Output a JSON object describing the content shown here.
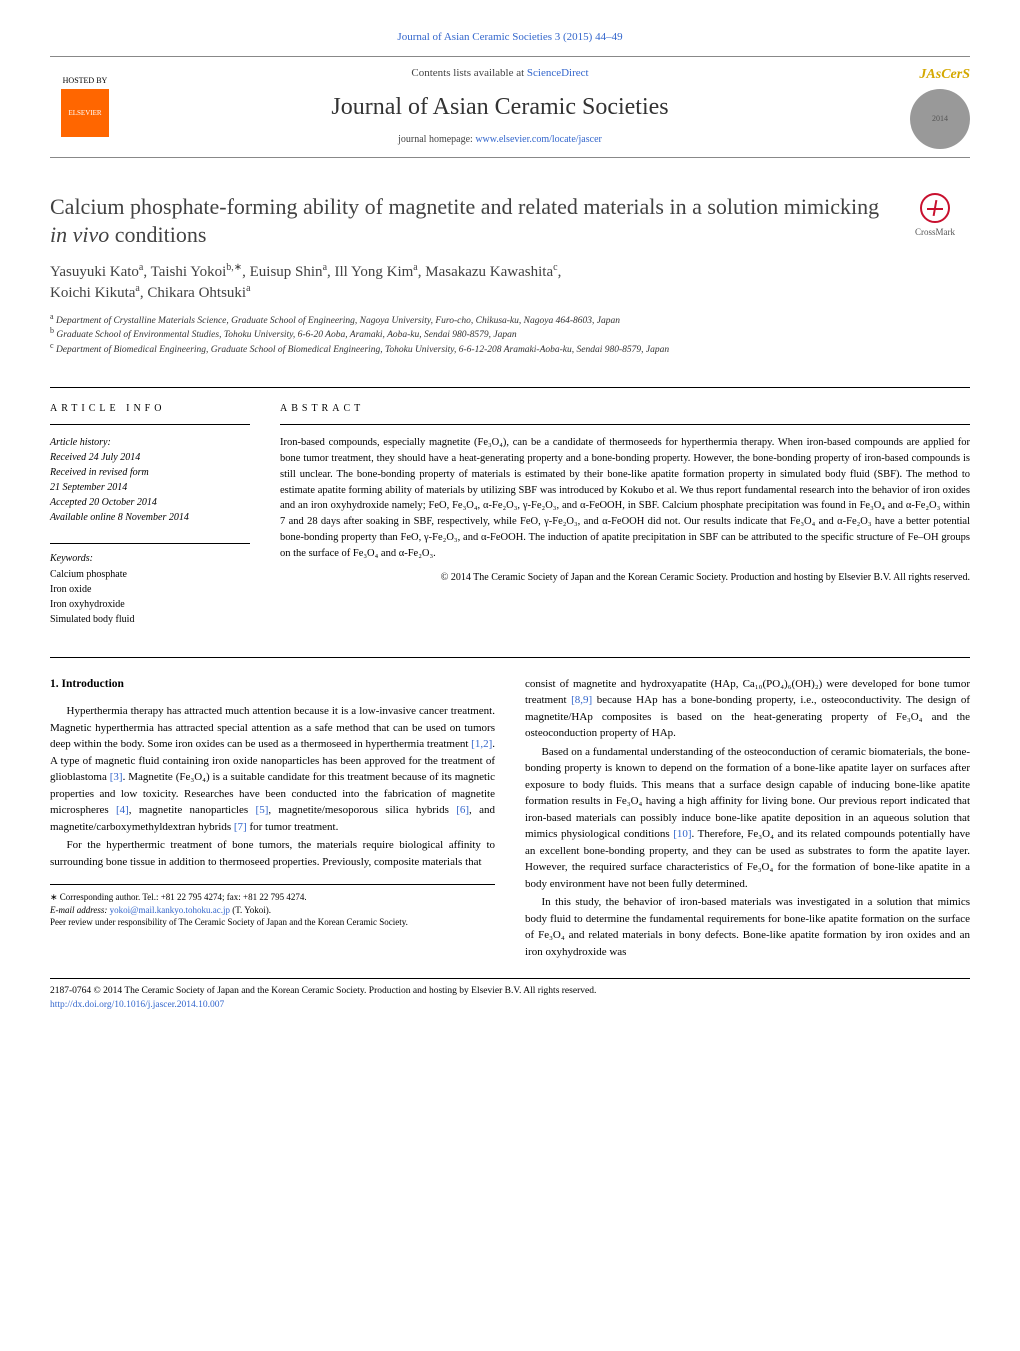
{
  "header": {
    "journal_ref": "Journal of Asian Ceramic Societies 3 (2015) 44–49",
    "hosted_by": "HOSTED BY",
    "publisher_name": "ELSEVIER",
    "contents_prefix": "Contents lists available at ",
    "contents_link": "ScienceDirect",
    "journal_name": "Journal of Asian Ceramic Societies",
    "homepage_prefix": "journal homepage: ",
    "homepage_link": "www.elsevier.com/locate/jascer",
    "journal_logo_text": "JAsCerS",
    "journal_logo_year": "2014"
  },
  "crossmark": {
    "label": "CrossMark"
  },
  "title": {
    "pre": "Calcium phosphate-forming ability of magnetite and related materials in a solution mimicking ",
    "ital": "in vivo",
    "post": " conditions"
  },
  "authors": {
    "a1": "Yasuyuki Kato",
    "a1_sup": "a",
    "a2": "Taishi Yokoi",
    "a2_sup": "b,∗",
    "a3": "Euisup Shin",
    "a3_sup": "a",
    "a4": "Ill Yong Kim",
    "a4_sup": "a",
    "a5": "Masakazu Kawashita",
    "a5_sup": "c",
    "a6": "Koichi Kikuta",
    "a6_sup": "a",
    "a7": "Chikara Ohtsuki",
    "a7_sup": "a"
  },
  "affiliations": {
    "a": "Department of Crystalline Materials Science, Graduate School of Engineering, Nagoya University, Furo-cho, Chikusa-ku, Nagoya 464-8603, Japan",
    "b": "Graduate School of Environmental Studies, Tohoku University, 6-6-20 Aoba, Aramaki, Aoba-ku, Sendai 980-8579, Japan",
    "c": "Department of Biomedical Engineering, Graduate School of Biomedical Engineering, Tohoku University, 6-6-12-208 Aramaki-Aoba-ku, Sendai 980-8579, Japan"
  },
  "article_info": {
    "label": "ARTICLE INFO",
    "history_label": "Article history:",
    "received": "Received 24 July 2014",
    "revised1": "Received in revised form",
    "revised2": "21 September 2014",
    "accepted": "Accepted 20 October 2014",
    "online": "Available online 8 November 2014",
    "keywords_label": "Keywords:",
    "kw1": "Calcium phosphate",
    "kw2": "Iron oxide",
    "kw3": "Iron oxyhydroxide",
    "kw4": "Simulated body fluid"
  },
  "abstract": {
    "label": "ABSTRACT",
    "text": "Iron-based compounds, especially magnetite (Fe₃O₄), can be a candidate of thermoseeds for hyperthermia therapy. When iron-based compounds are applied for bone tumor treatment, they should have a heat-generating property and a bone-bonding property. However, the bone-bonding property of iron-based compounds is still unclear. The bone-bonding property of materials is estimated by their bone-like apatite formation property in simulated body fluid (SBF). The method to estimate apatite forming ability of materials by utilizing SBF was introduced by Kokubo et al. We thus report fundamental research into the behavior of iron oxides and an iron oxyhydroxide namely; FeO, Fe₃O₄, α-Fe₂O₃, γ-Fe₂O₃, and α-FeOOH, in SBF. Calcium phosphate precipitation was found in Fe₃O₄ and α-Fe₂O₃ within 7 and 28 days after soaking in SBF, respectively, while FeO, γ-Fe₂O₃, and α-FeOOH did not. Our results indicate that Fe₃O₄ and α-Fe₂O₃ have a better potential bone-bonding property than FeO, γ-Fe₂O₃, and α-FeOOH. The induction of apatite precipitation in SBF can be attributed to the specific structure of Fe–OH groups on the surface of Fe₃O₄ and α-Fe₂O₃.",
    "copyright": "© 2014 The Ceramic Society of Japan and the Korean Ceramic Society. Production and hosting by Elsevier B.V. All rights reserved."
  },
  "body": {
    "section_heading": "1. Introduction",
    "p1a": "Hyperthermia therapy has attracted much attention because it is a low-invasive cancer treatment. Magnetic hyperthermia has attracted special attention as a safe method that can be used on tumors deep within the body. Some iron oxides can be used as a thermoseed in hyperthermia treatment ",
    "r1": "[1,2]",
    "p1b": ". A type of magnetic fluid containing iron oxide nanoparticles has been approved for the treatment of glioblastoma ",
    "r2": "[3]",
    "p1c": ". Magnetite (Fe₃O₄) is a suitable candidate for this treatment because of its magnetic properties and low toxicity. Researches have been conducted into the fabrication of magnetite microspheres ",
    "r3": "[4]",
    "p1d": ", magnetite nanoparticles ",
    "r4": "[5]",
    "p1e": ", magnetite/mesoporous silica hybrids ",
    "r5": "[6]",
    "p1f": ", and magnetite/carboxymethyldextran hybrids ",
    "r6": "[7]",
    "p1g": " for tumor treatment.",
    "p2": "For the hyperthermic treatment of bone tumors, the materials require biological affinity to surrounding bone tissue in addition to thermoseed properties. Previously, composite materials that",
    "p3a": "consist of magnetite and hydroxyapatite (HAp, Ca₁₀(PO₄)₆(OH)₂) were developed for bone tumor treatment ",
    "r7": "[8,9]",
    "p3b": " because HAp has a bone-bonding property, i.e., osteoconductivity. The design of magnetite/HAp composites is based on the heat-generating property of Fe₃O₄ and the osteoconduction property of HAp.",
    "p4a": "Based on a fundamental understanding of the osteoconduction of ceramic biomaterials, the bone-bonding property is known to depend on the formation of a bone-like apatite layer on surfaces after exposure to body fluids. This means that a surface design capable of inducing bone-like apatite formation results in Fe₃O₄ having a high affinity for living bone. Our previous report indicated that iron-based materials can possibly induce bone-like apatite deposition in an aqueous solution that mimics physiological conditions ",
    "r8": "[10]",
    "p4b": ". Therefore, Fe₃O₄ and its related compounds potentially have an excellent bone-bonding property, and they can be used as substrates to form the apatite layer. However, the required surface characteristics of Fe₃O₄ for the formation of bone-like apatite in a body environment have not been fully determined.",
    "p5": "In this study, the behavior of iron-based materials was investigated in a solution that mimics body fluid to determine the fundamental requirements for bone-like apatite formation on the surface of Fe₃O₄ and related materials in bony defects. Bone-like apatite formation by iron oxides and an iron oxyhydroxide was"
  },
  "footnotes": {
    "corr": "∗ Corresponding author. Tel.: +81 22 795 4274; fax: +81 22 795 4274.",
    "email_label": "E-mail address: ",
    "email": "yokoi@mail.kankyo.tohoku.ac.jp",
    "email_suffix": " (T. Yokoi).",
    "peer": "Peer review under responsibility of The Ceramic Society of Japan and the Korean Ceramic Society."
  },
  "bottom": {
    "issn": "2187-0764 © 2014 The Ceramic Society of Japan and the Korean Ceramic Society. Production and hosting by Elsevier B.V. All rights reserved.",
    "doi": "http://dx.doi.org/10.1016/j.jascer.2014.10.007"
  },
  "colors": {
    "link": "#3366cc",
    "text": "#000000",
    "heading": "#424242",
    "elsevier": "#ff6600",
    "jascers": "#d4a800",
    "crossmark": "#c8102e"
  }
}
